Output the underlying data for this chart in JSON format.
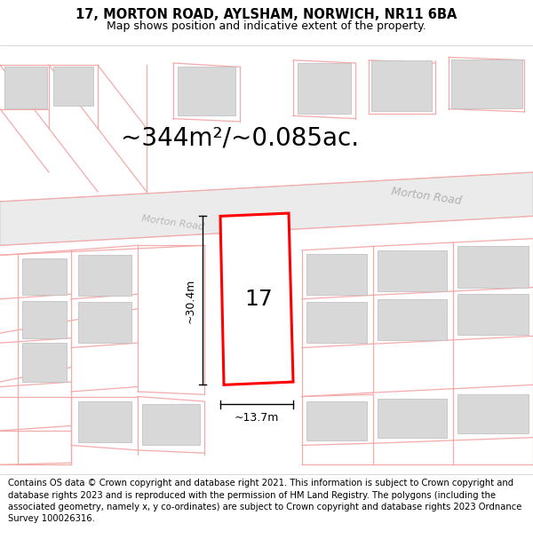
{
  "title": "17, MORTON ROAD, AYLSHAM, NORWICH, NR11 6BA",
  "subtitle": "Map shows position and indicative extent of the property.",
  "area_label": "~344m²/~0.085ac.",
  "number_label": "17",
  "dim_width": "~13.7m",
  "dim_height": "~30.4m",
  "road_label_1": "Morton Road",
  "road_label_2": "Morton Road",
  "copyright_text": "Contains OS data © Crown copyright and database right 2021. This information is subject to Crown copyright and database rights 2023 and is reproduced with the permission of HM Land Registry. The polygons (including the associated geometry, namely x, y co-ordinates) are subject to Crown copyright and database rights 2023 Ordnance Survey 100026316.",
  "background_color": "#ffffff",
  "road_fill": "#ebebeb",
  "building_fill": "#d8d8d8",
  "building_edge": "#bbbbbb",
  "highlight_color": "#ff0000",
  "pink_line_color": "#f5aaaa",
  "title_fontsize": 10.5,
  "subtitle_fontsize": 9,
  "area_fontsize": 20,
  "number_fontsize": 18,
  "dim_fontsize": 9,
  "road_fontsize": 9,
  "copyright_fontsize": 7.2
}
